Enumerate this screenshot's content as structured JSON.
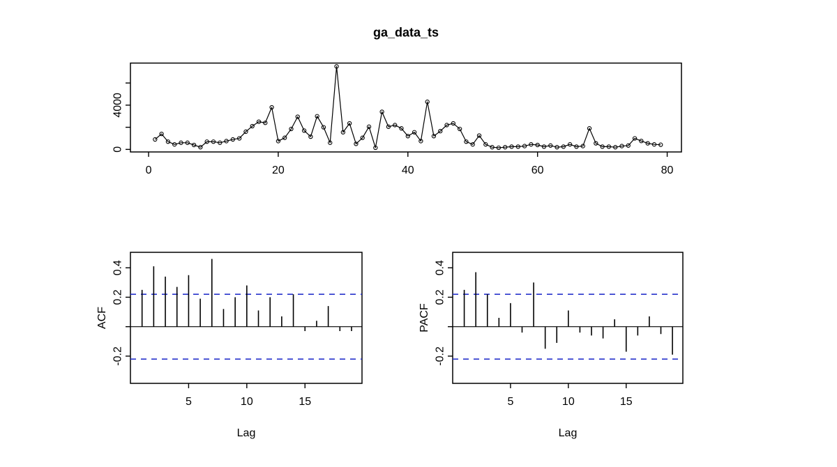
{
  "figure": {
    "title": "ga_data_ts",
    "background": "#ffffff"
  },
  "colors": {
    "stroke": "#000000",
    "confidence": "#2733cc"
  },
  "chart_data": [
    {
      "name": "time-series",
      "type": "line",
      "title": "ga_data_ts",
      "xlabel": "",
      "ylabel": "",
      "x_start": 1,
      "x": [
        1,
        2,
        3,
        4,
        5,
        6,
        7,
        8,
        9,
        10,
        11,
        12,
        13,
        14,
        15,
        16,
        17,
        18,
        19,
        20,
        21,
        22,
        23,
        24,
        25,
        26,
        27,
        28,
        29,
        30,
        31,
        32,
        33,
        34,
        35,
        36,
        37,
        38,
        39,
        40,
        41,
        42,
        43,
        44,
        45,
        46,
        47,
        48,
        49,
        50,
        51,
        52,
        53,
        54,
        55,
        56,
        57,
        58,
        59,
        60,
        61,
        62,
        63,
        64,
        65,
        66,
        67,
        68,
        69,
        70,
        71,
        72,
        73,
        74,
        75,
        76,
        77,
        78,
        79
      ],
      "values": [
        900,
        1400,
        700,
        450,
        600,
        600,
        400,
        200,
        700,
        700,
        600,
        750,
        900,
        1000,
        1600,
        2100,
        2500,
        2400,
        3800,
        750,
        1050,
        1850,
        2950,
        1700,
        1150,
        3000,
        2000,
        600,
        7500,
        1550,
        2350,
        500,
        1050,
        2050,
        150,
        3400,
        2050,
        2200,
        1900,
        1200,
        1550,
        750,
        4300,
        1200,
        1650,
        2200,
        2350,
        1850,
        700,
        450,
        1250,
        450,
        200,
        150,
        200,
        250,
        250,
        300,
        450,
        400,
        250,
        350,
        200,
        250,
        450,
        250,
        300,
        1900,
        550,
        250,
        250,
        200,
        300,
        350,
        1000,
        760,
        550,
        450,
        420
      ],
      "xticks": [
        0,
        20,
        40,
        60,
        80
      ],
      "xtick_labels": [
        "0",
        "20",
        "40",
        "60",
        "80"
      ],
      "yticks": [
        0,
        2000,
        4000,
        6000
      ],
      "ytick_labels": [
        "0",
        "",
        "4000",
        ""
      ],
      "xlim": [
        -2.8,
        82.2
      ],
      "ylim": [
        -230,
        7800
      ],
      "marker": "open-circle",
      "grid": false,
      "legend": null
    },
    {
      "name": "acf",
      "type": "bar",
      "title": "",
      "xlabel": "Lag",
      "ylabel": "ACF",
      "categories": [
        1,
        2,
        3,
        4,
        5,
        6,
        7,
        8,
        9,
        10,
        11,
        12,
        13,
        14,
        15,
        16,
        17,
        18,
        19
      ],
      "values": [
        0.25,
        0.41,
        0.34,
        0.27,
        0.35,
        0.19,
        0.46,
        0.12,
        0.2,
        0.28,
        0.11,
        0.2,
        0.07,
        0.22,
        -0.03,
        0.04,
        0.14,
        -0.03,
        -0.03
      ],
      "confidence_level": 0.22,
      "confidence_style": "dashed-blue",
      "xticks": [
        5,
        10,
        15
      ],
      "xtick_labels": [
        "5",
        "10",
        "15"
      ],
      "yticks": [
        0.4,
        0.2,
        0,
        -0.2
      ],
      "ytick_labels": [
        "0.4",
        "0.2",
        "",
        "-0.2"
      ],
      "xlim": [
        0,
        19.9
      ],
      "ylim": [
        -0.385,
        0.505
      ],
      "grid": false
    },
    {
      "name": "pacf",
      "type": "bar",
      "title": "",
      "xlabel": "Lag",
      "ylabel": "PACF",
      "categories": [
        1,
        2,
        3,
        4,
        5,
        6,
        7,
        8,
        9,
        10,
        11,
        12,
        13,
        14,
        15,
        16,
        17,
        18,
        19
      ],
      "values": [
        0.25,
        0.37,
        0.22,
        0.06,
        0.16,
        -0.04,
        0.3,
        -0.15,
        -0.11,
        0.11,
        -0.04,
        -0.06,
        -0.08,
        0.05,
        -0.17,
        -0.06,
        0.07,
        -0.05,
        -0.19
      ],
      "confidence_level": 0.22,
      "confidence_style": "dashed-blue",
      "xticks": [
        5,
        10,
        15
      ],
      "xtick_labels": [
        "5",
        "10",
        "15"
      ],
      "yticks": [
        0.4,
        0.2,
        0,
        -0.2
      ],
      "ytick_labels": [
        "0.4",
        "0.2",
        "",
        "-0.2"
      ],
      "xlim": [
        0,
        19.9
      ],
      "ylim": [
        -0.385,
        0.505
      ],
      "grid": false
    }
  ]
}
